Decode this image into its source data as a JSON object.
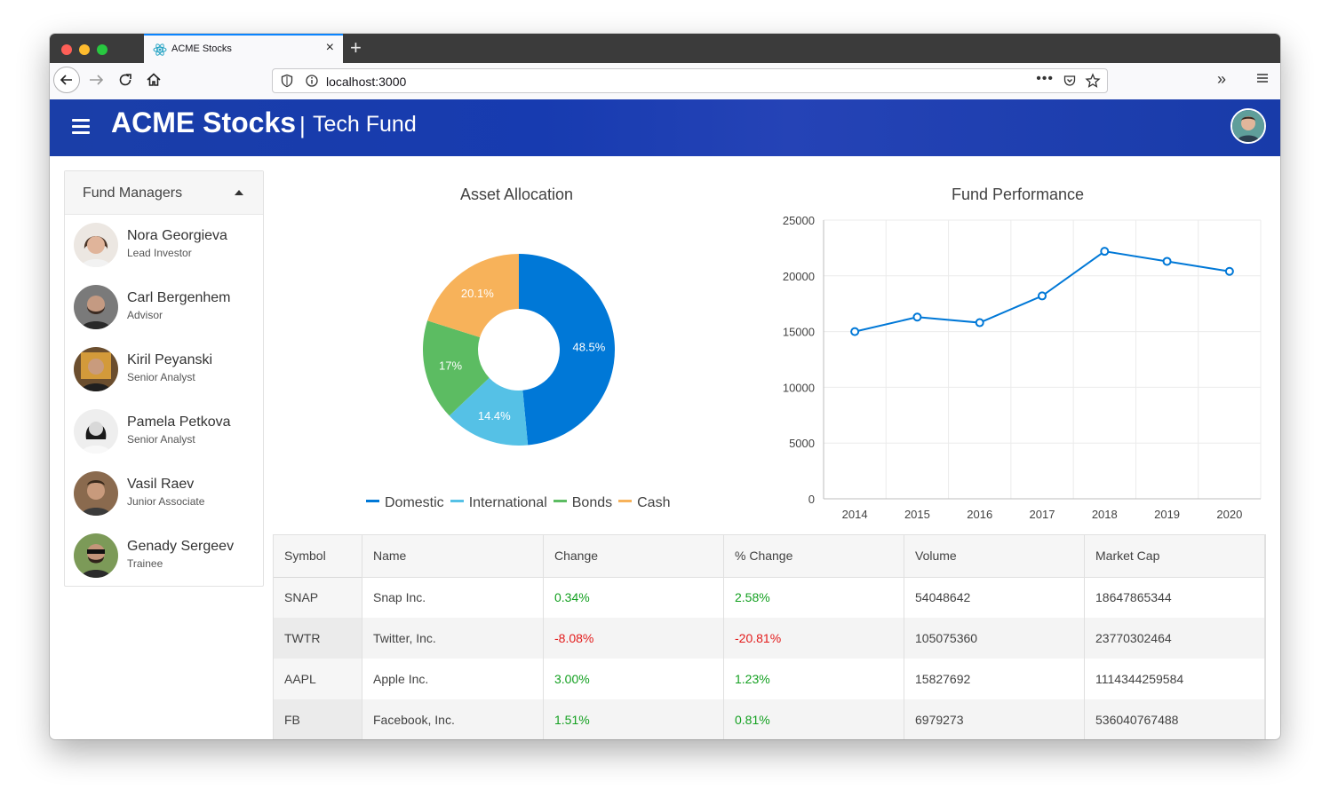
{
  "browser": {
    "tab_title": "ACME Stocks",
    "url": "localhost:3000"
  },
  "header": {
    "title": "ACME Stocks",
    "separator": "|",
    "subtitle": "Tech Fund"
  },
  "sidebar": {
    "title": "Fund Managers",
    "managers": [
      {
        "name": "Nora Georgieva",
        "role": "Lead Investor"
      },
      {
        "name": "Carl Bergenhem",
        "role": "Advisor"
      },
      {
        "name": "Kiril Peyanski",
        "role": "Senior Analyst"
      },
      {
        "name": "Pamela Petkova",
        "role": "Senior Analyst"
      },
      {
        "name": "Vasil Raev",
        "role": "Junior Associate"
      },
      {
        "name": "Genady Sergeev",
        "role": "Trainee"
      }
    ]
  },
  "colors": {
    "domestic": "#0078d7",
    "international": "#55c1e6",
    "bonds": "#5cbc62",
    "cash": "#f7b25a",
    "line": "#0078d7",
    "positive": "#13a020",
    "negative": "#e31b1b"
  },
  "chart_data": [
    {
      "type": "pie",
      "title": "Asset Allocation",
      "donut": true,
      "legend_position": "bottom",
      "categories": [
        "Domestic",
        "International",
        "Bonds",
        "Cash"
      ],
      "values": [
        48.5,
        14.4,
        17,
        20.1
      ],
      "data_labels": [
        "48.5%",
        "14.4%",
        "17%",
        "20.1%"
      ]
    },
    {
      "type": "line",
      "title": "Fund Performance",
      "categories": [
        "2014",
        "2015",
        "2016",
        "2017",
        "2018",
        "2019",
        "2020"
      ],
      "values": [
        15000,
        16300,
        15800,
        18200,
        22200,
        21300,
        20400
      ],
      "ylim": [
        0,
        25000
      ],
      "y_ticks": [
        "0",
        "5000",
        "10000",
        "15000",
        "20000",
        "25000"
      ],
      "grid": true
    }
  ],
  "table": {
    "headers": [
      "Symbol",
      "Name",
      "Change",
      "% Change",
      "Volume",
      "Market Cap"
    ],
    "rows": [
      {
        "symbol": "SNAP",
        "name": "Snap Inc.",
        "change": "0.34%",
        "pct_change": "2.58%",
        "volume": "54048642",
        "market_cap": "18647865344",
        "change_dir": "up",
        "pct_dir": "up"
      },
      {
        "symbol": "TWTR",
        "name": "Twitter, Inc.",
        "change": "-8.08%",
        "pct_change": "-20.81%",
        "volume": "105075360",
        "market_cap": "23770302464",
        "change_dir": "down",
        "pct_dir": "down"
      },
      {
        "symbol": "AAPL",
        "name": "Apple Inc.",
        "change": "3.00%",
        "pct_change": "1.23%",
        "volume": "15827692",
        "market_cap": "1114344259584",
        "change_dir": "up",
        "pct_dir": "up"
      },
      {
        "symbol": "FB",
        "name": "Facebook, Inc.",
        "change": "1.51%",
        "pct_change": "0.81%",
        "volume": "6979273",
        "market_cap": "536040767488",
        "change_dir": "up",
        "pct_dir": "up"
      }
    ]
  }
}
